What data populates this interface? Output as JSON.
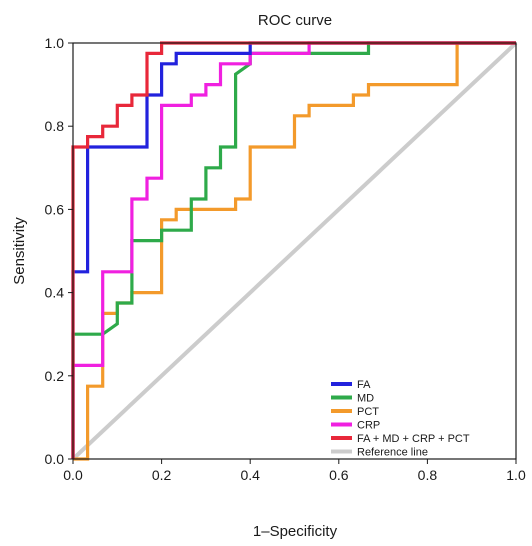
{
  "chart_data": {
    "type": "line",
    "title": "ROC curve",
    "xlabel": "1–Specificity",
    "ylabel": "Sensitivity",
    "xlim": [
      0,
      1
    ],
    "ylim": [
      0,
      1
    ],
    "x_ticks": [
      "0.0",
      "0.2",
      "0.4",
      "0.6",
      "0.8",
      "1.0"
    ],
    "y_ticks": [
      "0.0",
      "0.2",
      "0.4",
      "0.6",
      "0.8",
      "1.0"
    ],
    "grid": false,
    "legend_position": "bottom-right",
    "series": [
      {
        "name": "Reference line",
        "color": "#cccccc",
        "x": [
          0,
          1
        ],
        "y": [
          0,
          1
        ]
      },
      {
        "name": "PCT",
        "color": "#f39a2b",
        "x": [
          0,
          0.033,
          0.033,
          0.067,
          0.067,
          0.1,
          0.1,
          0.133,
          0.133,
          0.2,
          0.2,
          0.233,
          0.233,
          0.367,
          0.367,
          0.4,
          0.4,
          0.5,
          0.5,
          0.533,
          0.533,
          0.633,
          0.633,
          0.667,
          0.667,
          0.733,
          0.733,
          0.867,
          0.867,
          1
        ],
        "y": [
          0,
          0,
          0.175,
          0.175,
          0.35,
          0.35,
          0.375,
          0.375,
          0.4,
          0.4,
          0.575,
          0.575,
          0.6,
          0.6,
          0.625,
          0.625,
          0.75,
          0.75,
          0.825,
          0.825,
          0.85,
          0.85,
          0.875,
          0.875,
          0.9,
          0.9,
          0.9,
          0.9,
          1.0,
          1.0
        ]
      },
      {
        "name": "MD",
        "color": "#2eaa4a",
        "x": [
          0,
          0,
          0.067,
          0.067,
          0.1,
          0.1,
          0.133,
          0.133,
          0.2,
          0.2,
          0.267,
          0.267,
          0.3,
          0.3,
          0.333,
          0.333,
          0.367,
          0.367,
          0.4,
          0.4,
          0.667,
          0.667,
          1
        ],
        "y": [
          0,
          0.3,
          0.3,
          0.3,
          0.325,
          0.375,
          0.375,
          0.525,
          0.525,
          0.55,
          0.55,
          0.625,
          0.625,
          0.7,
          0.7,
          0.75,
          0.75,
          0.925,
          0.95,
          0.975,
          0.975,
          1.0,
          1.0
        ]
      },
      {
        "name": "CRP",
        "color": "#f020e0",
        "x": [
          0,
          0,
          0.067,
          0.067,
          0.133,
          0.133,
          0.167,
          0.167,
          0.2,
          0.2,
          0.267,
          0.267,
          0.3,
          0.3,
          0.333,
          0.333,
          0.4,
          0.4,
          0.533,
          0.533,
          1
        ],
        "y": [
          0,
          0.225,
          0.225,
          0.45,
          0.45,
          0.625,
          0.625,
          0.675,
          0.675,
          0.85,
          0.85,
          0.875,
          0.875,
          0.9,
          0.9,
          0.95,
          0.95,
          0.975,
          0.975,
          1.0,
          1.0
        ]
      },
      {
        "name": "FA",
        "color": "#2222dd",
        "x": [
          0,
          0,
          0.033,
          0.033,
          0.167,
          0.167,
          0.2,
          0.2,
          0.233,
          0.233,
          0.4,
          0.4,
          1
        ],
        "y": [
          0,
          0.45,
          0.45,
          0.75,
          0.75,
          0.875,
          0.875,
          0.95,
          0.95,
          0.975,
          0.975,
          1.0,
          1.0
        ]
      },
      {
        "name": "FA + MD + CRP + PCT",
        "color": "#e8283a",
        "x": [
          0,
          0,
          0.033,
          0.033,
          0.067,
          0.067,
          0.1,
          0.1,
          0.133,
          0.133,
          0.167,
          0.167,
          0.2,
          0.2,
          1
        ],
        "y": [
          0,
          0.75,
          0.75,
          0.775,
          0.775,
          0.8,
          0.8,
          0.85,
          0.85,
          0.875,
          0.875,
          0.975,
          0.975,
          1.0,
          1.0
        ]
      }
    ],
    "legend_order": [
      "FA",
      "MD",
      "PCT",
      "CRP",
      "FA + MD + CRP + PCT",
      "Reference line"
    ]
  }
}
